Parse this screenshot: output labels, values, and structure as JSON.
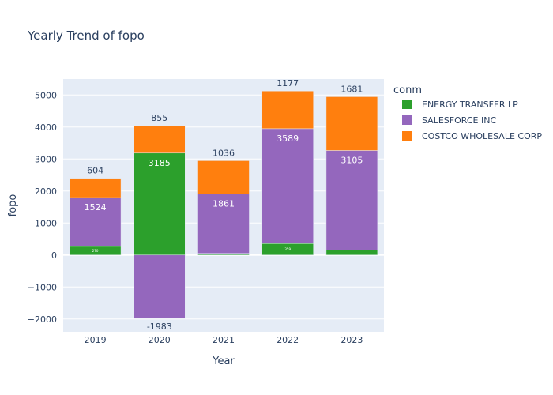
{
  "chart_data": {
    "type": "bar",
    "barmode": "relative",
    "title": "Yearly Trend of fopo",
    "xlabel": "Year",
    "ylabel": "fopo",
    "categories": [
      "2019",
      "2020",
      "2021",
      "2022",
      "2023"
    ],
    "ylim": [
      -2400,
      5500
    ],
    "yticks": [
      -2000,
      -1000,
      0,
      1000,
      2000,
      3000,
      4000,
      5000
    ],
    "ytick_labels": [
      "−2000",
      "−1000",
      "0",
      "1000",
      "2000",
      "3000",
      "4000",
      "5000"
    ],
    "grid": true,
    "legend": {
      "title": "conm",
      "position": "right"
    },
    "series": [
      {
        "name": "ENERGY TRANSFER LP",
        "color": "#2ca02c",
        "values": [
          270,
          3185,
          50,
          359,
          160
        ],
        "labels": [
          "270",
          "3185",
          "",
          "359",
          ""
        ]
      },
      {
        "name": "SALESFORCE INC",
        "color": "#9467bd",
        "values": [
          1524,
          -1983,
          1861,
          3589,
          3105
        ],
        "labels": [
          "1524",
          "-1983",
          "1861",
          "3589",
          "3105"
        ]
      },
      {
        "name": "COSTCO WHOLESALE CORP",
        "color": "#ff7f0e",
        "values": [
          604,
          855,
          1036,
          1177,
          1681
        ],
        "labels": [
          "604",
          "855",
          "1036",
          "1177",
          "1681"
        ]
      }
    ]
  }
}
